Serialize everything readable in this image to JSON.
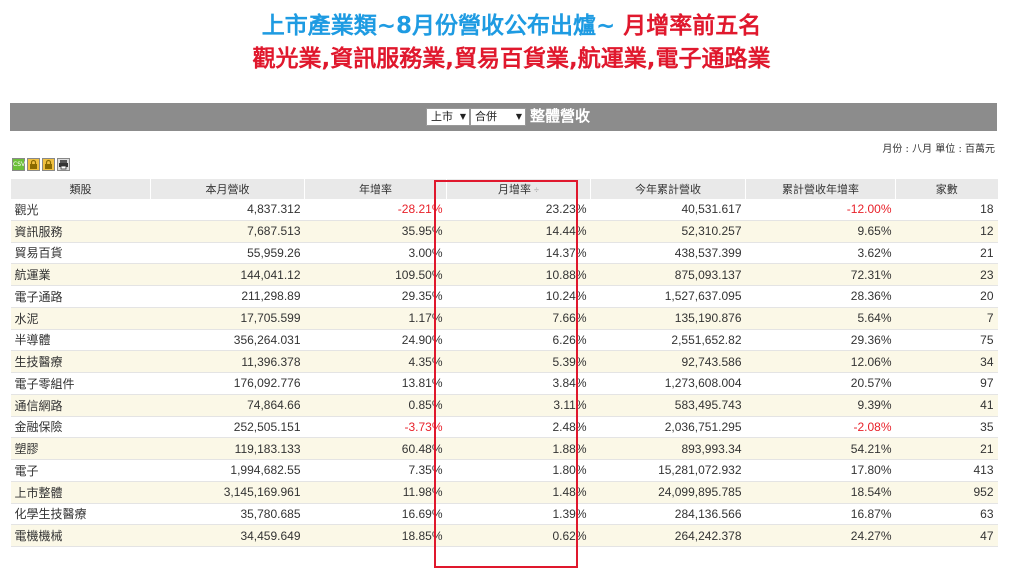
{
  "titles": {
    "line1_blue": "上市產業類~8月份營收公布出爐~",
    "line1_red": " 月增率前五名",
    "line2": "觀光業,資訊服務業,貿易百貨業,航運業,電子通路業"
  },
  "header": {
    "market_select": "上市",
    "consolidation_select": "合併",
    "title": "整體營收",
    "arrow": "▼"
  },
  "meta": "月份 : 八月 單位 : 百萬元",
  "icons": [
    "csv-icon",
    "lock-icon",
    "lock-icon",
    "print-icon"
  ],
  "icon_texts": {
    "csv": "CSV"
  },
  "columns": [
    "類股",
    "本月營收",
    "年增率",
    "月增率",
    "今年累計營收",
    "累計營收年增率",
    "家數"
  ],
  "sort_mark": "÷",
  "rows": [
    {
      "name": "觀光",
      "revenue": "4,837.312",
      "yoy": "-28.21%",
      "mom": "23.23%",
      "ytd": "40,531.617",
      "ytd_yoy": "-12.00%",
      "count": "18"
    },
    {
      "name": "資訊服務",
      "revenue": "7,687.513",
      "yoy": "35.95%",
      "mom": "14.44%",
      "ytd": "52,310.257",
      "ytd_yoy": "9.65%",
      "count": "12"
    },
    {
      "name": "貿易百貨",
      "revenue": "55,959.26",
      "yoy": "3.00%",
      "mom": "14.37%",
      "ytd": "438,537.399",
      "ytd_yoy": "3.62%",
      "count": "21"
    },
    {
      "name": "航運業",
      "revenue": "144,041.12",
      "yoy": "109.50%",
      "mom": "10.88%",
      "ytd": "875,093.137",
      "ytd_yoy": "72.31%",
      "count": "23"
    },
    {
      "name": "電子通路",
      "revenue": "211,298.89",
      "yoy": "29.35%",
      "mom": "10.24%",
      "ytd": "1,527,637.095",
      "ytd_yoy": "28.36%",
      "count": "20"
    },
    {
      "name": "水泥",
      "revenue": "17,705.599",
      "yoy": "1.17%",
      "mom": "7.66%",
      "ytd": "135,190.876",
      "ytd_yoy": "5.64%",
      "count": "7"
    },
    {
      "name": "半導體",
      "revenue": "356,264.031",
      "yoy": "24.90%",
      "mom": "6.26%",
      "ytd": "2,551,652.82",
      "ytd_yoy": "29.36%",
      "count": "75"
    },
    {
      "name": "生技醫療",
      "revenue": "11,396.378",
      "yoy": "4.35%",
      "mom": "5.39%",
      "ytd": "92,743.586",
      "ytd_yoy": "12.06%",
      "count": "34"
    },
    {
      "name": "電子零組件",
      "revenue": "176,092.776",
      "yoy": "13.81%",
      "mom": "3.84%",
      "ytd": "1,273,608.004",
      "ytd_yoy": "20.57%",
      "count": "97"
    },
    {
      "name": "通信網路",
      "revenue": "74,864.66",
      "yoy": "0.85%",
      "mom": "3.11%",
      "ytd": "583,495.743",
      "ytd_yoy": "9.39%",
      "count": "41"
    },
    {
      "name": "金融保險",
      "revenue": "252,505.151",
      "yoy": "-3.73%",
      "mom": "2.48%",
      "ytd": "2,036,751.295",
      "ytd_yoy": "-2.08%",
      "count": "35"
    },
    {
      "name": "塑膠",
      "revenue": "119,183.133",
      "yoy": "60.48%",
      "mom": "1.88%",
      "ytd": "893,993.34",
      "ytd_yoy": "54.21%",
      "count": "21"
    },
    {
      "name": "電子",
      "revenue": "1,994,682.55",
      "yoy": "7.35%",
      "mom": "1.80%",
      "ytd": "15,281,072.932",
      "ytd_yoy": "17.80%",
      "count": "413"
    },
    {
      "name": "上市整體",
      "revenue": "3,145,169.961",
      "yoy": "11.98%",
      "mom": "1.48%",
      "ytd": "24,099,895.785",
      "ytd_yoy": "18.54%",
      "count": "952"
    },
    {
      "name": "化學生技醫療",
      "revenue": "35,780.685",
      "yoy": "16.69%",
      "mom": "1.39%",
      "ytd": "284,136.566",
      "ytd_yoy": "16.87%",
      "count": "63"
    },
    {
      "name": "電機機械",
      "revenue": "34,459.649",
      "yoy": "18.85%",
      "mom": "0.62%",
      "ytd": "264,242.378",
      "ytd_yoy": "24.27%",
      "count": "47"
    }
  ],
  "colors": {
    "title_blue": "#1e9be2",
    "title_red": "#e0182d",
    "negative": "#e8212a",
    "header_bar": "#8c8c8c",
    "row_alt": "#fbf8e7"
  }
}
